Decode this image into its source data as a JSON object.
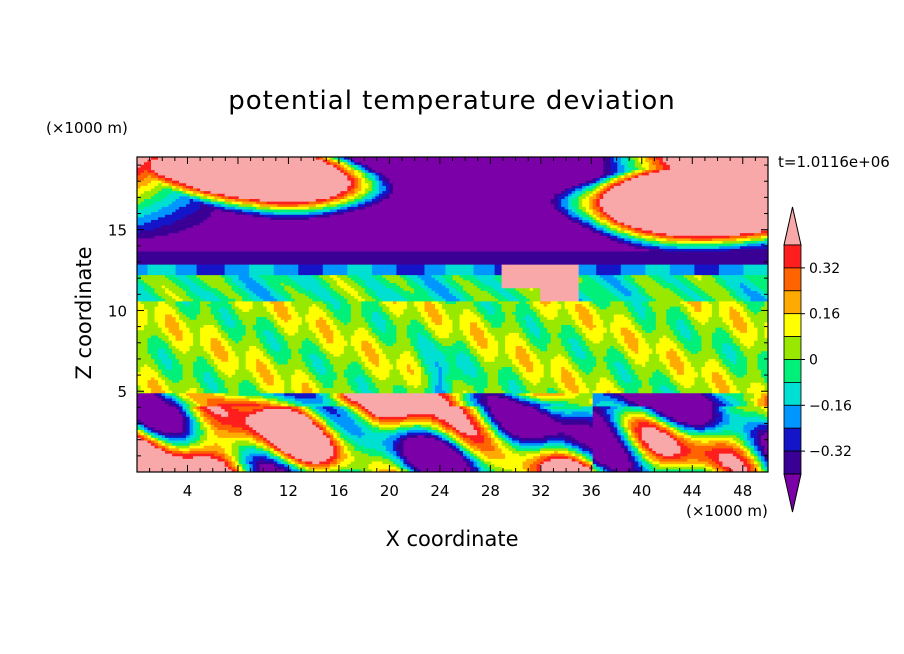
{
  "chart_data": {
    "type": "heatmap",
    "title": "potential temperature deviation",
    "xlabel": "X coordinate",
    "ylabel": "Z coordinate",
    "x_unit_label": "(×1000 m)",
    "y_unit_label": "(×1000 m)",
    "time_label": "t=1.0116e+06",
    "xlim": [
      0,
      50
    ],
    "ylim": [
      0,
      19.5
    ],
    "x_ticks": [
      4,
      8,
      12,
      16,
      20,
      24,
      28,
      32,
      36,
      40,
      44,
      48
    ],
    "y_ticks": [
      5,
      10,
      15
    ],
    "colorbar": {
      "levels": [
        "-0.40",
        "-0.32",
        "-0.24",
        "-0.16",
        "-0.08",
        "0",
        "0.08",
        "0.16",
        "0.24",
        "0.32",
        "0.40"
      ],
      "tick_labels": [
        "0.32",
        "0.16",
        "0",
        "−0.16",
        "−0.32"
      ],
      "tick_values": [
        0.32,
        0.16,
        0,
        -0.16,
        -0.32
      ],
      "colors": [
        "#7B00A8",
        "#3A0095",
        "#1414C8",
        "#0096FF",
        "#00E0D2",
        "#00F07A",
        "#98E800",
        "#FFFF00",
        "#FFAA00",
        "#FF6400",
        "#FF1E1E",
        "#F8A8A8"
      ]
    },
    "bands": [
      {
        "z_from": 0,
        "z_to": 4.9,
        "dominant_level": "mixed turbulent layer"
      },
      {
        "z_from": 4.9,
        "z_to": 10.5,
        "dominant_level": "0 to 0.08"
      },
      {
        "z_from": 10.5,
        "z_to": 12.8,
        "dominant_level": "-0.08 to 0"
      },
      {
        "z_from": 12.8,
        "z_to": 19.5,
        "dominant_level": "below -0.40 / above 0.40"
      }
    ]
  }
}
